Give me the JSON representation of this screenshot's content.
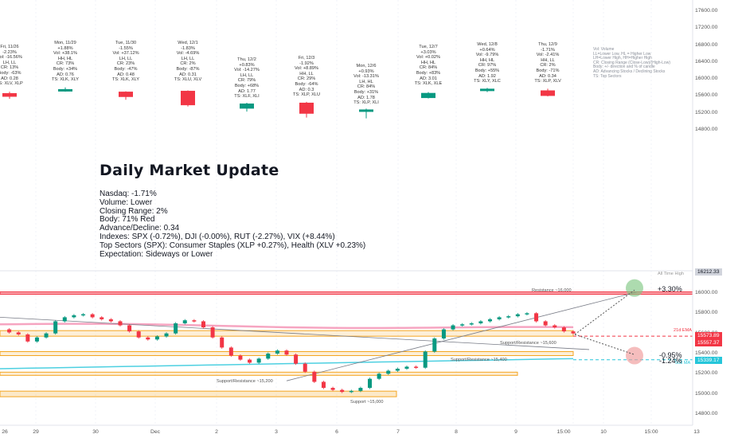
{
  "days": [
    {
      "lines": [
        "Fri, 11/26",
        "-2.23%",
        "Vol: -16.56%",
        "LH, LL",
        "CR: 13%",
        "Body: -63%",
        "AD: 0.28",
        "TS: XLV, XLP"
      ],
      "color": "red",
      "o": 15665,
      "c": 15580,
      "h": 15700,
      "l": 15530
    },
    {
      "lines": [
        "Mon, 11/29",
        "+1.88%",
        "Vol: +38.1%",
        "HH, HL",
        "CR: 73%",
        "Body: +34%",
        "AD: 0.76",
        "TS: XLK, XLY"
      ],
      "color": "green",
      "o": 15730,
      "c": 15760,
      "h": 15800,
      "l": 15700
    },
    {
      "lines": [
        "Tue, 11/30",
        "-1.55%",
        "Vol: +37.12%",
        "LH, LL",
        "CR: 23%",
        "Body: -47%",
        "AD: 0.48",
        "TS: XLK, XLY"
      ],
      "color": "red",
      "o": 15700,
      "c": 15575,
      "h": 15710,
      "l": 15510
    },
    {
      "lines": [
        "Wed, 12/1",
        "-1.83%",
        "Vol: -4.69%",
        "LH, LL",
        "CR: 2%",
        "Body: -87%",
        "AD: 0.31",
        "TS: XLU, XLV"
      ],
      "color": "red",
      "o": 15720,
      "c": 15380,
      "h": 15730,
      "l": 15350
    },
    {
      "lines": [
        "Thu, 12/2",
        "+0.83%",
        "Vol: -14.27%",
        "LH, LL",
        "CR: 79%",
        "Body: +68%",
        "AD: 1.77",
        "TS: XLF, XLI"
      ],
      "color": "green",
      "o": 15300,
      "c": 15420,
      "h": 15440,
      "l": 15230
    },
    {
      "lines": [
        "Fri, 12/3",
        "-1.92%",
        "Vol: +8.89%",
        "HH, LL",
        "CR: 29%",
        "Body: -64%",
        "AD: 0.3",
        "TS: XLP, XLU"
      ],
      "color": "red",
      "o": 15440,
      "c": 15180,
      "h": 15460,
      "l": 15090
    },
    {
      "lines": [
        "Mon, 12/6",
        "+0.93%",
        "Vol: -13.31%",
        "LH, HL",
        "CR: 84%",
        "Body: +31%",
        "AD: 1.78",
        "TS: XLP, XLI"
      ],
      "color": "green",
      "o": 15230,
      "c": 15280,
      "h": 15300,
      "l": 15070
    },
    {
      "lines": [
        "Tue, 12/7",
        "+3.03%",
        "Vol: +0.02%",
        "HH, HL",
        "CR: 84%",
        "Body: +83%",
        "AD: 3.01",
        "TS: XLK, XLE"
      ],
      "color": "green",
      "o": 15550,
      "c": 15670,
      "h": 15690,
      "l": 15540
    },
    {
      "lines": [
        "Wed, 12/8",
        "+0.64%",
        "Vol: -9.79%",
        "HH, HL",
        "CR: 97%",
        "Body: +55%",
        "AD: 1.92",
        "TS: XLY, XLC"
      ],
      "color": "green",
      "o": 15720,
      "c": 15770,
      "h": 15790,
      "l": 15690
    },
    {
      "lines": [
        "Thu, 12/9",
        "-1.71%",
        "Vol: -2.41%",
        "HH, LL",
        "CR: 2%",
        "Body: -71%",
        "AD: 0.34",
        "TS: XLP, XLV"
      ],
      "color": "red",
      "o": 15730,
      "c": 15600,
      "h": 15770,
      "l": 15590
    }
  ],
  "legend": [
    "Vol: Volume",
    "LL=Lower Low, HL = Higher Low",
    "LH=Lower High, HH=Higher High",
    "CR: Closing Range (Close-Low)/(High-Low)",
    "Body: +/- direction and % of candle",
    "AD: Advancing Stocks / Declining Stocks",
    "TS: Top Sectors"
  ],
  "title": "Daily Market Update",
  "summary": [
    "Nasdaq: -1.71%",
    "Volume: Lower",
    "Closing Range: 2%",
    "Body: 71% Red",
    "Advance/Decline: 0.34",
    "Indexes: SPX (-0.72%), DJI (-0.00%), RUT (-2.27%), VIX (+8.44%)",
    "Top Sectors (SPX): Consumer Staples (XLP +0.27%), Health (XLV +0.23%)",
    "Expectation: Sideways or Lower"
  ],
  "chart_data": {
    "type": "line",
    "upper_axis": {
      "ticks": [
        17600,
        17200,
        16800,
        16400,
        16000,
        15600,
        15200,
        14800
      ]
    },
    "lower_axis": {
      "ticks": [
        16000,
        15800,
        15600,
        15400,
        15200,
        15000,
        14800
      ]
    },
    "x_labels": [
      "26",
      "29",
      "30",
      "Dec",
      "2",
      "3",
      "6",
      "7",
      "8",
      "9",
      "15:00",
      "10",
      "15:00",
      "13"
    ],
    "levels": [
      {
        "label": "Resistance ~16,000",
        "value": 16000,
        "color": "#f23645"
      },
      {
        "label": "Support/Resistance ~15,600",
        "value": 15600,
        "color": "#f5a623"
      },
      {
        "label": "Support/Resistance ~15,400",
        "value": 15400,
        "color": "#f5a623"
      },
      {
        "label": "Support/Resistance ~15,200",
        "value": 15200,
        "color": "#f5a623"
      },
      {
        "label": "Support ~15,000",
        "value": 15000,
        "color": "#f5a623"
      }
    ],
    "all_time_high": {
      "label": "All Time High",
      "value": "16212.33"
    },
    "ema": {
      "label": "21d EMA",
      "value": "15573.89",
      "color": "#f23645"
    },
    "last": {
      "value": "15557.37",
      "color": "#f23645"
    },
    "ma50": {
      "label": "50d MA",
      "value": "15339.17",
      "color": "#26c6da"
    },
    "targets": [
      {
        "label": "+3.30%",
        "value": 16050,
        "color": "#26a69a"
      },
      {
        "label": "-0.95%",
        "value": 15405,
        "color": "#f23645"
      },
      {
        "label": "-1.24%",
        "value": 15360,
        "color": "#f23645"
      }
    ],
    "price_path": [
      15640,
      15610,
      15590,
      15520,
      15560,
      15600,
      15720,
      15760,
      15780,
      15790,
      15760,
      15740,
      15720,
      15680,
      15620,
      15560,
      15540,
      15570,
      15600,
      15700,
      15730,
      15720,
      15660,
      15560,
      15460,
      15380,
      15340,
      15310,
      15350,
      15400,
      15430,
      15390,
      15300,
      15220,
      15120,
      15060,
      15040,
      15020,
      15030,
      15060,
      15150,
      15200,
      15230,
      15250,
      15270,
      15260,
      15420,
      15550,
      15640,
      15680,
      15690,
      15700,
      15720,
      15740,
      15760,
      15770,
      15790,
      15800,
      15720,
      15680,
      15660,
      15620,
      15600
    ]
  }
}
